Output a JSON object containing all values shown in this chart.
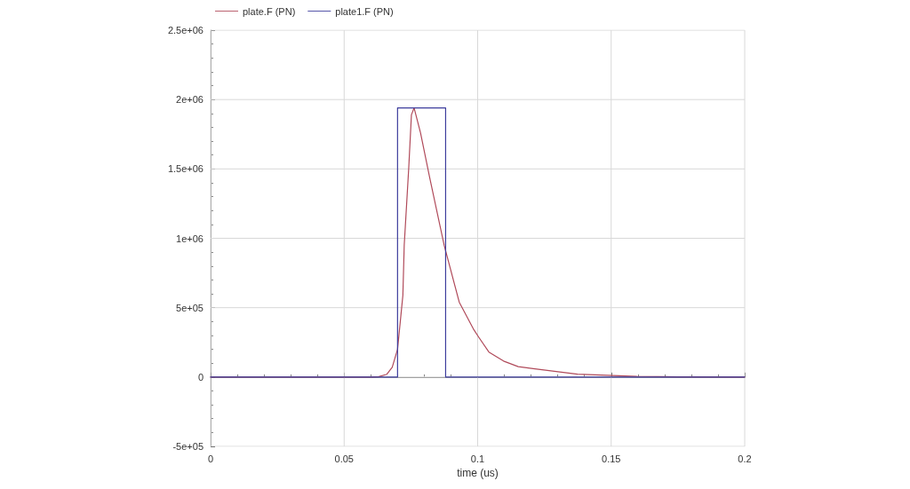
{
  "chart_data": {
    "type": "line",
    "xlabel": "time (us)",
    "xlim": [
      0,
      0.2
    ],
    "xticks": [
      0,
      0.05,
      0.1,
      0.15,
      0.2
    ],
    "ylim": [
      -500000,
      2500000
    ],
    "yticks": [
      {
        "value": -500000,
        "label": "-5e+05"
      },
      0,
      {
        "value": 500000,
        "label": "5e+05"
      },
      {
        "value": 1000000,
        "label": "1e+06"
      },
      {
        "value": 1500000,
        "label": "1.5e+06"
      },
      {
        "value": 2000000,
        "label": "2e+06"
      },
      {
        "value": 2500000,
        "label": "2.5e+06"
      }
    ],
    "grid": true,
    "legend": "top",
    "marker": "none",
    "line_style": "solid",
    "series": [
      {
        "name": "plate.F (PN)",
        "color": "#b04a5a",
        "x": [
          0,
          0.06,
          0.063,
          0.066,
          0.068,
          0.07,
          0.072,
          0.0725,
          0.0742,
          0.0752,
          0.0762,
          0.0786,
          0.082,
          0.0875,
          0.0931,
          0.0986,
          0.1003,
          0.1042,
          0.1097,
          0.1152,
          0.1208,
          0.1374,
          0.1596,
          0.18,
          0.2
        ],
        "values": [
          0,
          0,
          3000,
          20000,
          70000,
          200000,
          590000,
          950000,
          1510000,
          1890000,
          1940000,
          1760000,
          1440000,
          946000,
          540000,
          340000,
          290000,
          180000,
          115000,
          75000,
          60000,
          21000,
          4000,
          1000,
          0
        ]
      },
      {
        "name": "plate1.F (PN)",
        "color": "#3c3c9c",
        "x": [
          0,
          0.07,
          0.07,
          0.088,
          0.088,
          0.2
        ],
        "values": [
          0,
          0,
          1940000,
          1940000,
          0,
          0
        ]
      }
    ]
  }
}
